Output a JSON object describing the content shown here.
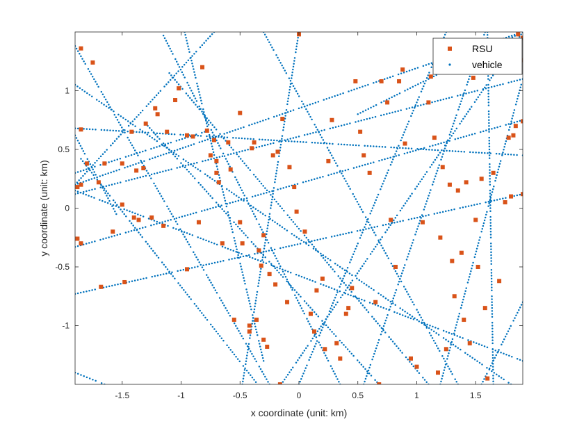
{
  "chart_data": {
    "type": "scatter",
    "xlabel": "x coordinate (unit: km)",
    "ylabel": "y coordinate (unit: km)",
    "xlim": [
      -1.9,
      1.9
    ],
    "ylim": [
      -1.5,
      1.5
    ],
    "xticks": [
      -1.5,
      -1,
      -0.5,
      0,
      0.5,
      1,
      1.5
    ],
    "xtick_labels": [
      "-1.5",
      "-1",
      "-0.5",
      "0",
      "0.5",
      "1",
      "1.5"
    ],
    "yticks": [
      -1,
      -0.5,
      0,
      0.5,
      1
    ],
    "ytick_labels": [
      "-1",
      "-0.5",
      "0",
      "0.5",
      "1"
    ],
    "grid": false,
    "legend_position": "top-right",
    "roads": [
      {
        "from": [
          -1.9,
          0.2
        ],
        "to": [
          1.9,
          1.5
        ]
      },
      {
        "from": [
          -1.9,
          -0.33
        ],
        "to": [
          1.9,
          0.75
        ]
      },
      {
        "from": [
          -1.9,
          0.12
        ],
        "to": [
          1.9,
          1.1
        ]
      },
      {
        "from": [
          -1.9,
          0.68
        ],
        "to": [
          1.9,
          0.45
        ]
      },
      {
        "from": [
          -1.9,
          -0.73
        ],
        "to": [
          1.9,
          0.12
        ]
      },
      {
        "from": [
          -1.9,
          0.3
        ],
        "to": [
          -0.8,
          0.65
        ]
      },
      {
        "from": [
          -1.9,
          1.38
        ],
        "to": [
          -0.25,
          -1.5
        ]
      },
      {
        "from": [
          -1.85,
          0.42
        ],
        "to": [
          -0.35,
          -1.5
        ]
      },
      {
        "from": [
          -1.15,
          1.47
        ],
        "to": [
          0.35,
          -1.5
        ]
      },
      {
        "from": [
          -0.97,
          1.5
        ],
        "to": [
          -0.3,
          -1.3
        ]
      },
      {
        "from": [
          -0.72,
          1.5
        ],
        "to": [
          -1.9,
          0.2
        ]
      },
      {
        "from": [
          -1.3,
          0.72
        ],
        "to": [
          0.68,
          -1.5
        ]
      },
      {
        "from": [
          -1.1,
          1.15
        ],
        "to": [
          1.1,
          -1.5
        ]
      },
      {
        "from": [
          -1.9,
          0.15
        ],
        "to": [
          1.9,
          -1.3
        ]
      },
      {
        "from": [
          -0.3,
          1.5
        ],
        "to": [
          1.35,
          -1.5
        ]
      },
      {
        "from": [
          -1.9,
          1.05
        ],
        "to": [
          1.8,
          -1.5
        ]
      },
      {
        "from": [
          0.0,
          1.5
        ],
        "to": [
          -0.48,
          -1.5
        ]
      },
      {
        "from": [
          -0.15,
          -1.5
        ],
        "to": [
          1.9,
          1.5
        ]
      },
      {
        "from": [
          0.0,
          -1.5
        ],
        "to": [
          1.25,
          1.5
        ]
      },
      {
        "from": [
          0.55,
          -1.5
        ],
        "to": [
          1.58,
          1.5
        ]
      },
      {
        "from": [
          1.6,
          1.5
        ],
        "to": [
          1.65,
          -1.5
        ]
      },
      {
        "from": [
          1.2,
          -1.5
        ],
        "to": [
          1.9,
          1.1
        ]
      },
      {
        "from": [
          0.5,
          0.8
        ],
        "to": [
          1.9,
          1.5
        ]
      },
      {
        "from": [
          1.9,
          -0.8
        ],
        "to": [
          1.55,
          -1.5
        ]
      },
      {
        "from": [
          -1.9,
          0.62
        ],
        "to": [
          -1.55,
          -0.05
        ]
      },
      {
        "from": [
          -1.9,
          -1.4
        ],
        "to": [
          -1.65,
          -1.5
        ]
      }
    ],
    "series": [
      {
        "name": "RSU",
        "marker": "square",
        "color": "#d95319",
        "points": [
          [
            -1.85,
            1.36
          ],
          [
            -1.75,
            1.24
          ],
          [
            -1.85,
            0.67
          ],
          [
            -1.8,
            0.38
          ],
          [
            -1.85,
            0.2
          ],
          [
            -1.88,
            0.18
          ],
          [
            -1.88,
            -0.26
          ],
          [
            -1.85,
            -0.3
          ],
          [
            -1.7,
            0.22
          ],
          [
            -1.65,
            0.38
          ],
          [
            -1.68,
            -0.67
          ],
          [
            -1.58,
            -0.2
          ],
          [
            -1.5,
            0.38
          ],
          [
            -1.5,
            0.03
          ],
          [
            -1.48,
            -0.63
          ],
          [
            -1.42,
            0.65
          ],
          [
            -1.38,
            0.32
          ],
          [
            -1.4,
            -0.08
          ],
          [
            -1.36,
            -0.1
          ],
          [
            -1.32,
            0.34
          ],
          [
            -1.3,
            0.72
          ],
          [
            -1.25,
            -0.08
          ],
          [
            -1.22,
            0.85
          ],
          [
            -1.2,
            0.8
          ],
          [
            -1.15,
            -0.15
          ],
          [
            -1.12,
            0.65
          ],
          [
            -1.05,
            0.92
          ],
          [
            -1.02,
            1.02
          ],
          [
            -0.95,
            -0.52
          ],
          [
            -0.95,
            0.62
          ],
          [
            -0.9,
            0.61
          ],
          [
            -0.85,
            -0.12
          ],
          [
            -0.82,
            1.2
          ],
          [
            -0.78,
            0.66
          ],
          [
            -0.75,
            0.45
          ],
          [
            -0.72,
            0.58
          ],
          [
            -0.7,
            0.4
          ],
          [
            -0.7,
            0.3
          ],
          [
            -0.68,
            0.22
          ],
          [
            -0.65,
            -0.3
          ],
          [
            -0.6,
            0.56
          ],
          [
            -0.58,
            0.33
          ],
          [
            -0.55,
            -0.95
          ],
          [
            -0.5,
            0.81
          ],
          [
            -0.5,
            -0.12
          ],
          [
            -0.48,
            -0.3
          ],
          [
            -0.42,
            -1.0
          ],
          [
            -0.42,
            -1.05
          ],
          [
            -0.4,
            0.51
          ],
          [
            -0.38,
            0.56
          ],
          [
            -0.36,
            -0.95
          ],
          [
            -0.34,
            -0.36
          ],
          [
            -0.32,
            -0.49
          ],
          [
            -0.3,
            -0.23
          ],
          [
            -0.3,
            -1.12
          ],
          [
            -0.27,
            -1.18
          ],
          [
            -0.25,
            -0.56
          ],
          [
            -0.22,
            0.45
          ],
          [
            -0.2,
            -0.65
          ],
          [
            -0.18,
            0.48
          ],
          [
            -0.16,
            -1.5
          ],
          [
            -0.14,
            0.76
          ],
          [
            -0.1,
            -0.8
          ],
          [
            -0.08,
            0.35
          ],
          [
            -0.04,
            0.18
          ],
          [
            -0.02,
            -0.03
          ],
          [
            0.0,
            1.48
          ],
          [
            0.05,
            -0.2
          ],
          [
            0.1,
            -0.9
          ],
          [
            0.13,
            -1.05
          ],
          [
            0.15,
            -0.7
          ],
          [
            0.2,
            -0.6
          ],
          [
            0.22,
            -1.2
          ],
          [
            0.25,
            0.4
          ],
          [
            0.28,
            0.75
          ],
          [
            0.32,
            -1.15
          ],
          [
            0.35,
            -1.28
          ],
          [
            0.4,
            -0.9
          ],
          [
            0.42,
            -0.85
          ],
          [
            0.45,
            -0.68
          ],
          [
            0.48,
            1.08
          ],
          [
            0.52,
            0.65
          ],
          [
            0.55,
            0.45
          ],
          [
            0.6,
            0.3
          ],
          [
            0.65,
            -0.8
          ],
          [
            0.68,
            -1.5
          ],
          [
            0.7,
            1.08
          ],
          [
            0.75,
            0.9
          ],
          [
            0.78,
            -0.1
          ],
          [
            0.82,
            -0.5
          ],
          [
            0.85,
            1.08
          ],
          [
            0.88,
            1.18
          ],
          [
            0.9,
            0.55
          ],
          [
            0.95,
            -1.28
          ],
          [
            1.0,
            -1.35
          ],
          [
            1.05,
            -0.12
          ],
          [
            1.1,
            0.9
          ],
          [
            1.12,
            1.12
          ],
          [
            1.15,
            0.6
          ],
          [
            1.18,
            -1.4
          ],
          [
            1.2,
            -0.25
          ],
          [
            1.22,
            0.35
          ],
          [
            1.25,
            -1.2
          ],
          [
            1.28,
            0.2
          ],
          [
            1.3,
            -0.45
          ],
          [
            1.32,
            -0.75
          ],
          [
            1.35,
            0.15
          ],
          [
            1.38,
            -0.38
          ],
          [
            1.4,
            -0.95
          ],
          [
            1.42,
            0.22
          ],
          [
            1.45,
            -1.15
          ],
          [
            1.48,
            1.11
          ],
          [
            1.5,
            -0.1
          ],
          [
            1.52,
            -0.5
          ],
          [
            1.55,
            0.25
          ],
          [
            1.58,
            -0.85
          ],
          [
            1.6,
            -1.45
          ],
          [
            1.65,
            0.3
          ],
          [
            1.7,
            -0.62
          ],
          [
            1.75,
            0.05
          ],
          [
            1.78,
            0.6
          ],
          [
            1.8,
            0.1
          ],
          [
            1.82,
            0.62
          ],
          [
            1.84,
            0.7
          ],
          [
            1.86,
            1.48
          ],
          [
            1.88,
            1.26
          ],
          [
            1.9,
            1.45
          ],
          [
            1.9,
            0.74
          ],
          [
            1.9,
            0.12
          ]
        ]
      },
      {
        "name": "vehicle",
        "marker": "dot",
        "color": "#0072bd"
      }
    ],
    "legend": [
      "RSU",
      "vehicle"
    ]
  }
}
